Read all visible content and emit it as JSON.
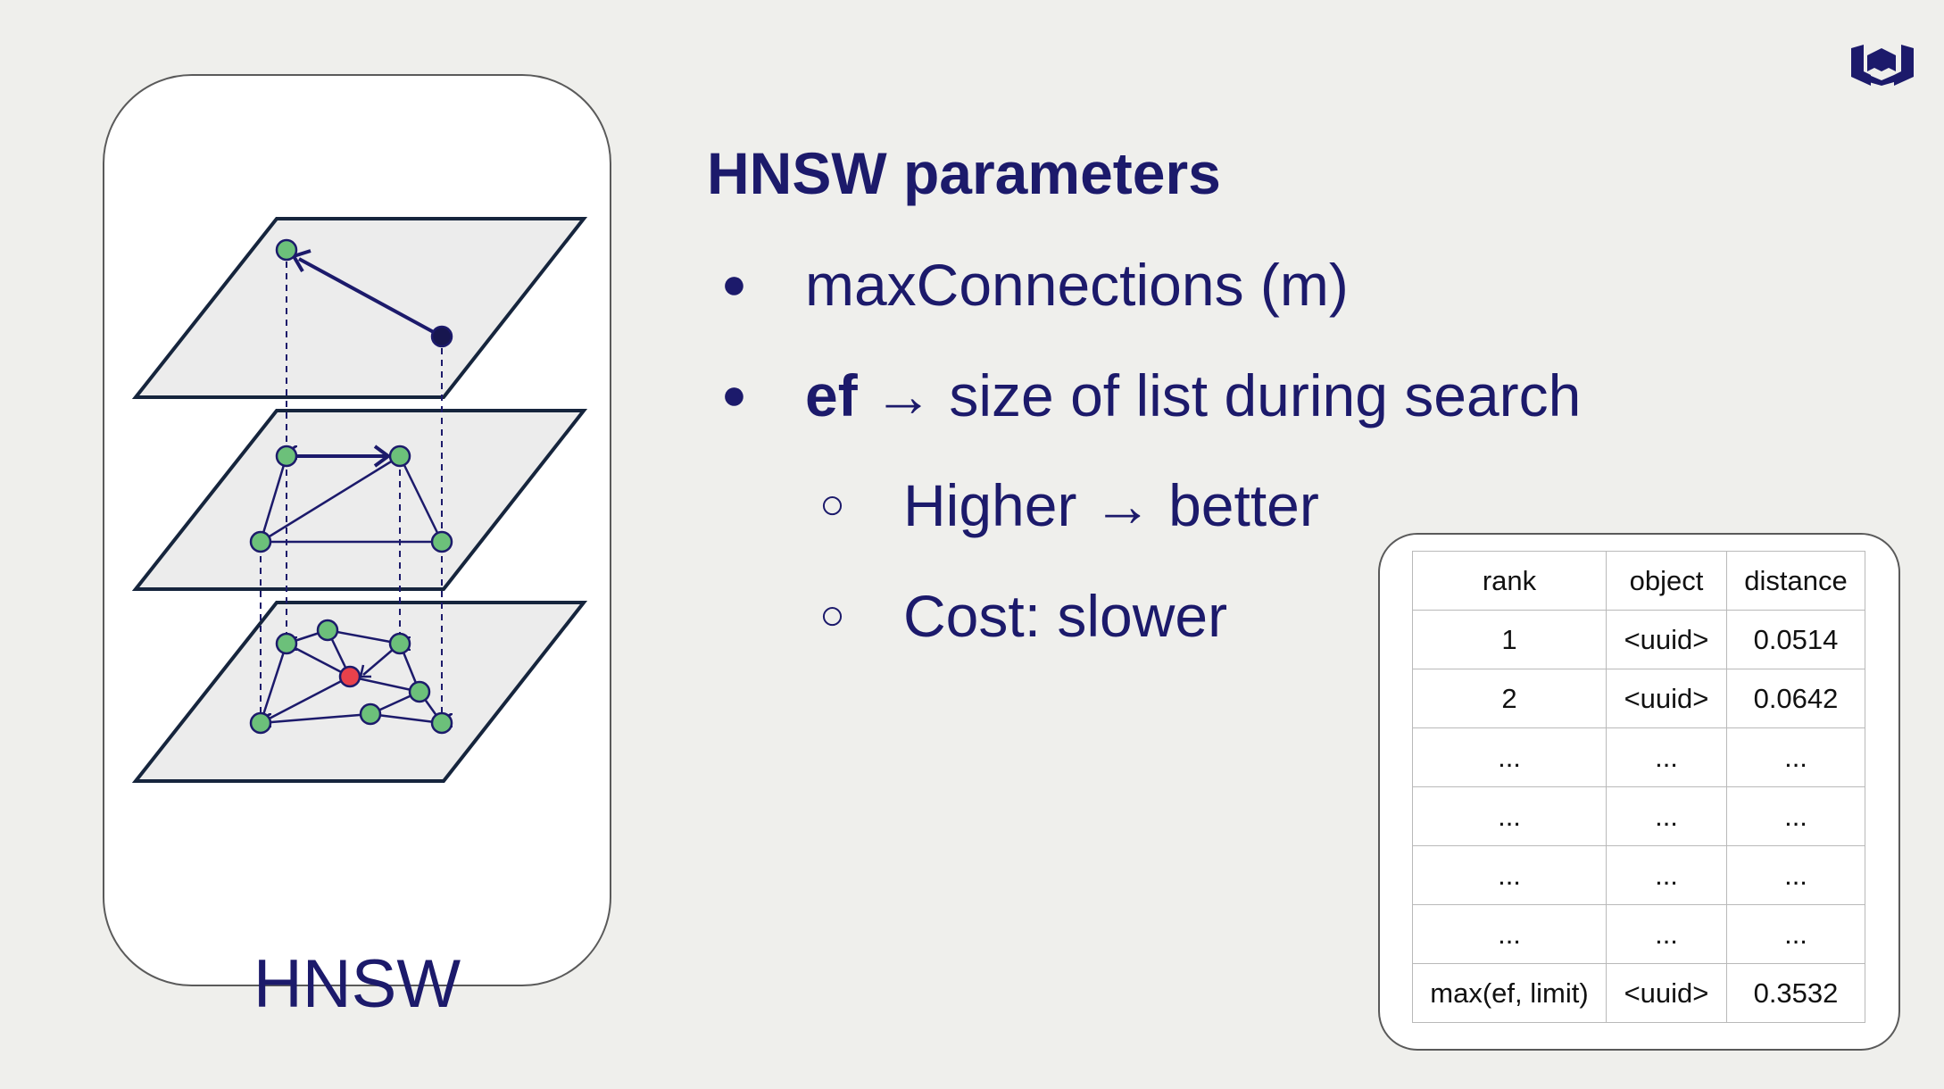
{
  "slide": {
    "title": "HNSW parameters",
    "bullets": [
      {
        "mark": "●",
        "bold": "",
        "text": "maxConnections (m)"
      },
      {
        "mark": "●",
        "bold": "ef",
        "text": " → size of list during search"
      }
    ],
    "sub_bullets": [
      {
        "mark": "○",
        "text": "Higher → better"
      },
      {
        "mark": "○",
        "text": "Cost: slower"
      }
    ]
  },
  "diagram": {
    "label": "HNSW",
    "colors": {
      "plane_fill": "#ececec",
      "plane_stroke": "#16253d",
      "node_green": "#6cc07a",
      "node_red": "#e8414b",
      "node_dark": "#17164f",
      "edge": "#1c1a6b"
    }
  },
  "table": {
    "headers": [
      "rank",
      "object",
      "distance"
    ],
    "rows": [
      [
        "1",
        "<uuid>",
        "0.0514"
      ],
      [
        "2",
        "<uuid>",
        "0.0642"
      ],
      [
        "...",
        "...",
        "..."
      ],
      [
        "...",
        "...",
        "..."
      ],
      [
        "...",
        "...",
        "..."
      ],
      [
        "...",
        "...",
        "..."
      ],
      [
        "max(ef, limit)",
        "<uuid>",
        "0.3532"
      ]
    ]
  },
  "logo": {
    "name": "weaviate-logo-icon",
    "color": "#1c1a6b"
  }
}
